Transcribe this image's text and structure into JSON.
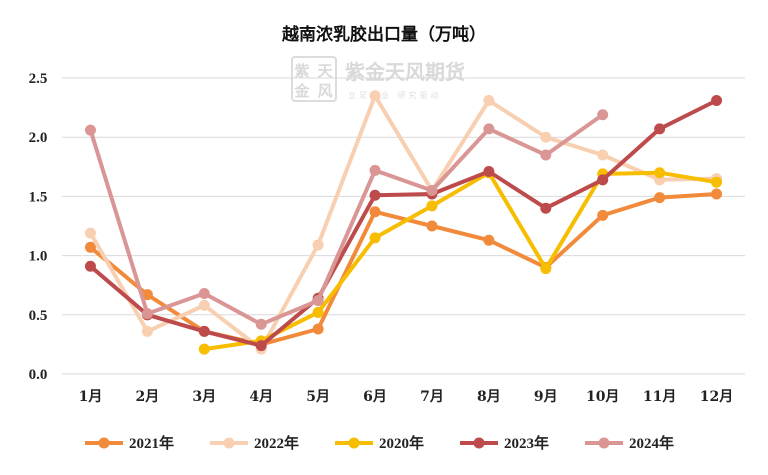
{
  "watermark": {
    "logo_chars": [
      "紫",
      "天",
      "金",
      "风"
    ],
    "name": "紫金天风期货",
    "tagline": "立足产业 研究驱动"
  },
  "chart_data": {
    "type": "line",
    "title": "越南浓乳胶出口量（万吨）",
    "categories": [
      "1月",
      "2月",
      "3月",
      "4月",
      "5月",
      "6月",
      "7月",
      "8月",
      "9月",
      "10月",
      "11月",
      "12月"
    ],
    "ylim": [
      0,
      2.5
    ],
    "yticks": [
      "0.0",
      "0.5",
      "1.0",
      "1.5",
      "2.0",
      "2.5"
    ],
    "grid": true,
    "legend_position": "bottom",
    "series": [
      {
        "name": "2021年",
        "color": "#f28a3b",
        "values": [
          1.07,
          0.67,
          0.36,
          0.25,
          0.38,
          1.37,
          1.25,
          1.13,
          0.9,
          1.34,
          1.49,
          1.52
        ]
      },
      {
        "name": "2022年",
        "color": "#f8cfb0",
        "values": [
          1.19,
          0.36,
          0.58,
          0.21,
          1.09,
          2.35,
          1.55,
          2.31,
          2.0,
          1.85,
          1.64,
          1.65
        ]
      },
      {
        "name": "2020年",
        "color": "#f7bd00",
        "values": [
          null,
          null,
          0.21,
          0.28,
          0.52,
          1.15,
          1.42,
          1.7,
          0.89,
          1.69,
          1.7,
          1.62
        ]
      },
      {
        "name": "2023年",
        "color": "#be4b4b",
        "values": [
          0.91,
          0.5,
          0.36,
          0.24,
          0.64,
          1.51,
          1.52,
          1.71,
          1.4,
          1.64,
          2.07,
          2.31
        ]
      },
      {
        "name": "2024年",
        "color": "#d99694",
        "values": [
          2.06,
          0.51,
          0.68,
          0.42,
          0.62,
          1.72,
          1.55,
          2.07,
          1.85,
          2.19,
          null,
          null
        ]
      }
    ]
  }
}
